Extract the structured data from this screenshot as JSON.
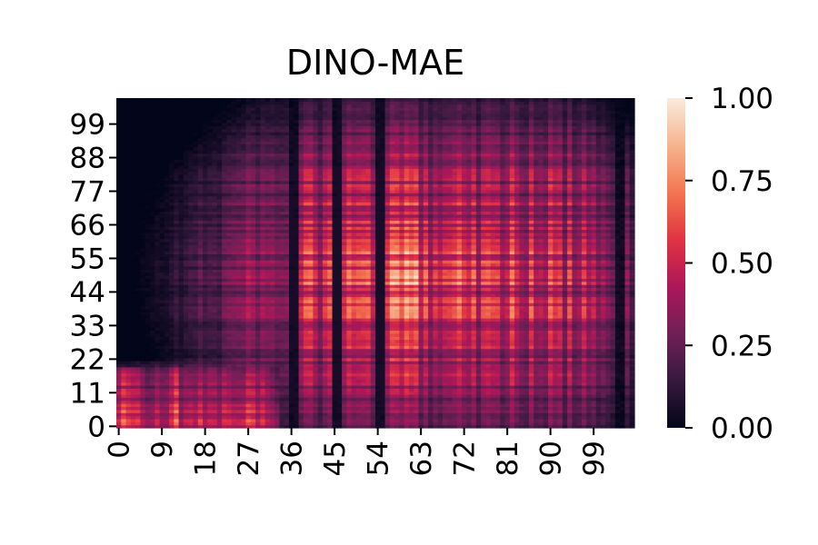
{
  "chart_data": {
    "type": "heatmap",
    "title": "DINO-MAE",
    "xlabel": "",
    "ylabel": "",
    "rows": 108,
    "cols": 108,
    "x_tick_labels": [
      "0",
      "9",
      "18",
      "27",
      "36",
      "45",
      "54",
      "63",
      "72",
      "81",
      "90",
      "99"
    ],
    "y_tick_labels": [
      "0",
      "11",
      "22",
      "33",
      "44",
      "55",
      "66",
      "77",
      "88",
      "99"
    ],
    "value_range": [
      0.0,
      1.0
    ],
    "colorbar_ticks": [
      "0.00",
      "0.25",
      "0.50",
      "0.75",
      "1.00"
    ],
    "colormap": "rocket",
    "colorscale": [
      "#03051a",
      "#36193e",
      "#701f57",
      "#ad1759",
      "#e13342",
      "#f37651",
      "#f6b48f",
      "#faebdd"
    ],
    "dark_columns": [
      36,
      37,
      45,
      46,
      54,
      55,
      104,
      105
    ],
    "grid": false,
    "legend": "colorbar-right"
  }
}
